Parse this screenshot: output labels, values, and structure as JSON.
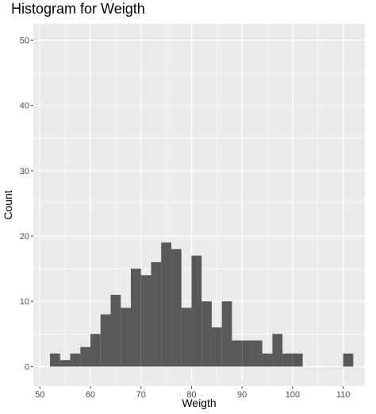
{
  "chart_data": {
    "type": "bar",
    "subtype": "histogram",
    "title": "Histogram for Weigth",
    "xlabel": "Weigth",
    "ylabel": "Count",
    "xlim": [
      48.7,
      114.3
    ],
    "ylim": [
      -3,
      52.5
    ],
    "x_ticks": [
      50,
      60,
      70,
      80,
      90,
      100,
      110
    ],
    "y_ticks": [
      0,
      10,
      20,
      30,
      40,
      50
    ],
    "grid": true,
    "legend": "none",
    "bin_width": 2,
    "bar_color": "#595959",
    "panel_background": "#ebebeb",
    "grid_color": "#ffffff",
    "bins": [
      {
        "x": 53,
        "count": 2
      },
      {
        "x": 55,
        "count": 1
      },
      {
        "x": 57,
        "count": 2
      },
      {
        "x": 59,
        "count": 3
      },
      {
        "x": 61,
        "count": 5
      },
      {
        "x": 63,
        "count": 8
      },
      {
        "x": 65,
        "count": 11
      },
      {
        "x": 67,
        "count": 9
      },
      {
        "x": 69,
        "count": 15
      },
      {
        "x": 71,
        "count": 14
      },
      {
        "x": 73,
        "count": 16
      },
      {
        "x": 75,
        "count": 19
      },
      {
        "x": 77,
        "count": 18
      },
      {
        "x": 79,
        "count": 9
      },
      {
        "x": 81,
        "count": 17
      },
      {
        "x": 83,
        "count": 10
      },
      {
        "x": 85,
        "count": 6
      },
      {
        "x": 87,
        "count": 10
      },
      {
        "x": 89,
        "count": 4
      },
      {
        "x": 91,
        "count": 4
      },
      {
        "x": 93,
        "count": 4
      },
      {
        "x": 95,
        "count": 2
      },
      {
        "x": 97,
        "count": 5
      },
      {
        "x": 99,
        "count": 2
      },
      {
        "x": 101,
        "count": 2
      },
      {
        "x": 111,
        "count": 2
      }
    ]
  }
}
